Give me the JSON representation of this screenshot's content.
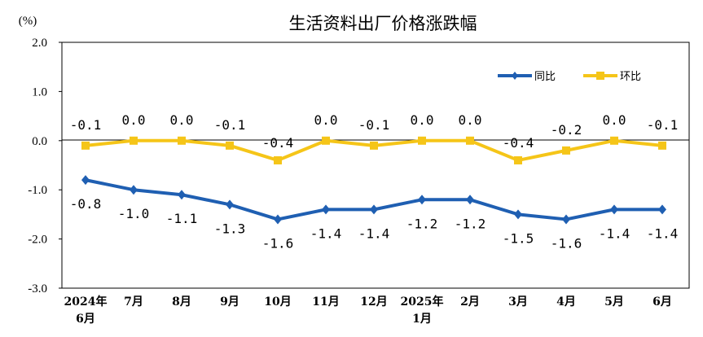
{
  "chart_data": {
    "type": "line",
    "title": "生活资料出厂价格涨跌幅",
    "unit_label": "(%)",
    "ylim": [
      -3.0,
      2.0
    ],
    "yticks": [
      "2.0",
      "1.0",
      "0.0",
      "-1.0",
      "-2.0",
      "-3.0"
    ],
    "ytick_values": [
      2.0,
      1.0,
      0.0,
      -1.0,
      -2.0,
      -3.0
    ],
    "grid": false,
    "legend_position": "top-right",
    "categories": [
      [
        "2024年",
        "6月"
      ],
      [
        "7月"
      ],
      [
        "8月"
      ],
      [
        "9月"
      ],
      [
        "10月"
      ],
      [
        "11月"
      ],
      [
        "12月"
      ],
      [
        "2025年",
        "1月"
      ],
      [
        "2月"
      ],
      [
        "3月"
      ],
      [
        "4月"
      ],
      [
        "5月"
      ],
      [
        "6月"
      ]
    ],
    "series": [
      {
        "name": "同比",
        "color": "#1F5FB2",
        "marker": "diamond",
        "values": [
          -0.8,
          -1.0,
          -1.1,
          -1.3,
          -1.6,
          -1.4,
          -1.4,
          -1.2,
          -1.2,
          -1.5,
          -1.6,
          -1.4,
          -1.4
        ],
        "labels": [
          "-0.8",
          "-1.0",
          "-1.1",
          "-1.3",
          "-1.6",
          "-1.4",
          "-1.4",
          "-1.2",
          "-1.2",
          "-1.5",
          "-1.6",
          "-1.4",
          "-1.4"
        ]
      },
      {
        "name": "环比",
        "color": "#F5C518",
        "marker": "square",
        "values": [
          -0.1,
          0.0,
          0.0,
          -0.1,
          -0.4,
          0.0,
          -0.1,
          0.0,
          0.0,
          -0.4,
          -0.2,
          0.0,
          -0.1
        ],
        "labels": [
          "-0.1",
          "0.0",
          "0.0",
          "-0.1",
          "-0.4",
          "0.0",
          "-0.1",
          "0.0",
          "0.0",
          "-0.4",
          "-0.2",
          "0.0",
          "-0.1"
        ]
      }
    ]
  }
}
